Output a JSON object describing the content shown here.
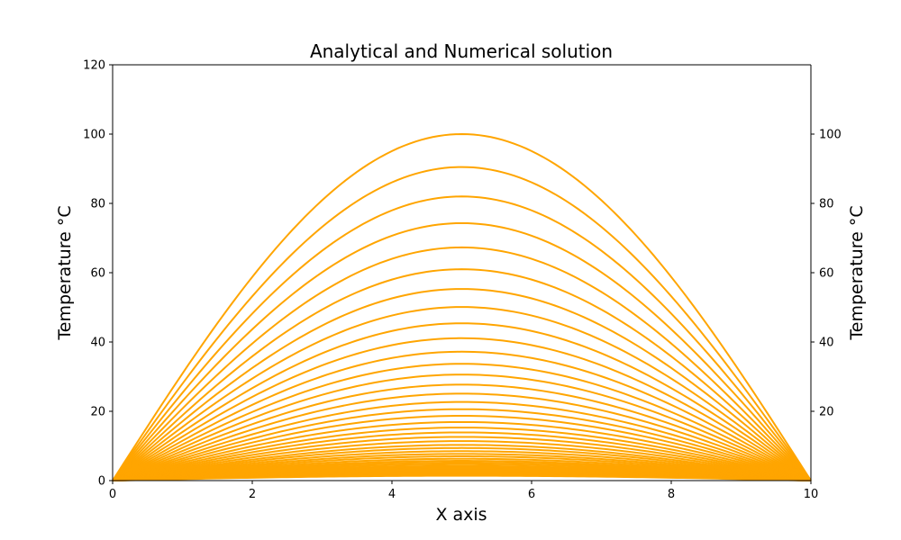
{
  "chart_data": {
    "type": "line",
    "title": "Analytical and Numerical solution",
    "xlabel": "X axis",
    "ylabel": "Temperature °C",
    "ylabel_right": "Temperature °C",
    "xlim": [
      0,
      10
    ],
    "ylim": [
      0,
      120
    ],
    "y2lim": [
      0,
      120
    ],
    "grid": false,
    "legend": "none",
    "x_ticks": [
      "0",
      "2",
      "4",
      "6",
      "8",
      "10"
    ],
    "y_ticks": [
      "0",
      "20",
      "40",
      "60",
      "80",
      "100",
      "120"
    ],
    "y2_ticks": [
      "20",
      "40",
      "60",
      "80",
      "100"
    ],
    "curve_shape": "sine",
    "curve_x_range": [
      0,
      10
    ],
    "series_peaks": [
      100.0,
      90.5,
      82.0,
      74.3,
      67.3,
      61.0,
      55.3,
      50.1,
      45.4,
      41.1,
      37.2,
      33.7,
      30.6,
      27.7,
      25.1,
      22.7,
      20.6,
      18.7,
      16.9,
      15.3,
      13.9,
      12.6,
      11.4,
      10.3,
      9.4,
      8.5,
      7.7,
      7.0,
      6.3,
      5.7,
      5.2,
      4.7,
      4.2,
      3.8,
      3.5,
      3.2,
      2.9,
      2.6,
      2.3,
      2.1,
      1.9,
      1.7,
      1.6,
      1.4
    ],
    "colors": {
      "analytical": "#1f77b4",
      "numerical": "#ffa500"
    }
  }
}
